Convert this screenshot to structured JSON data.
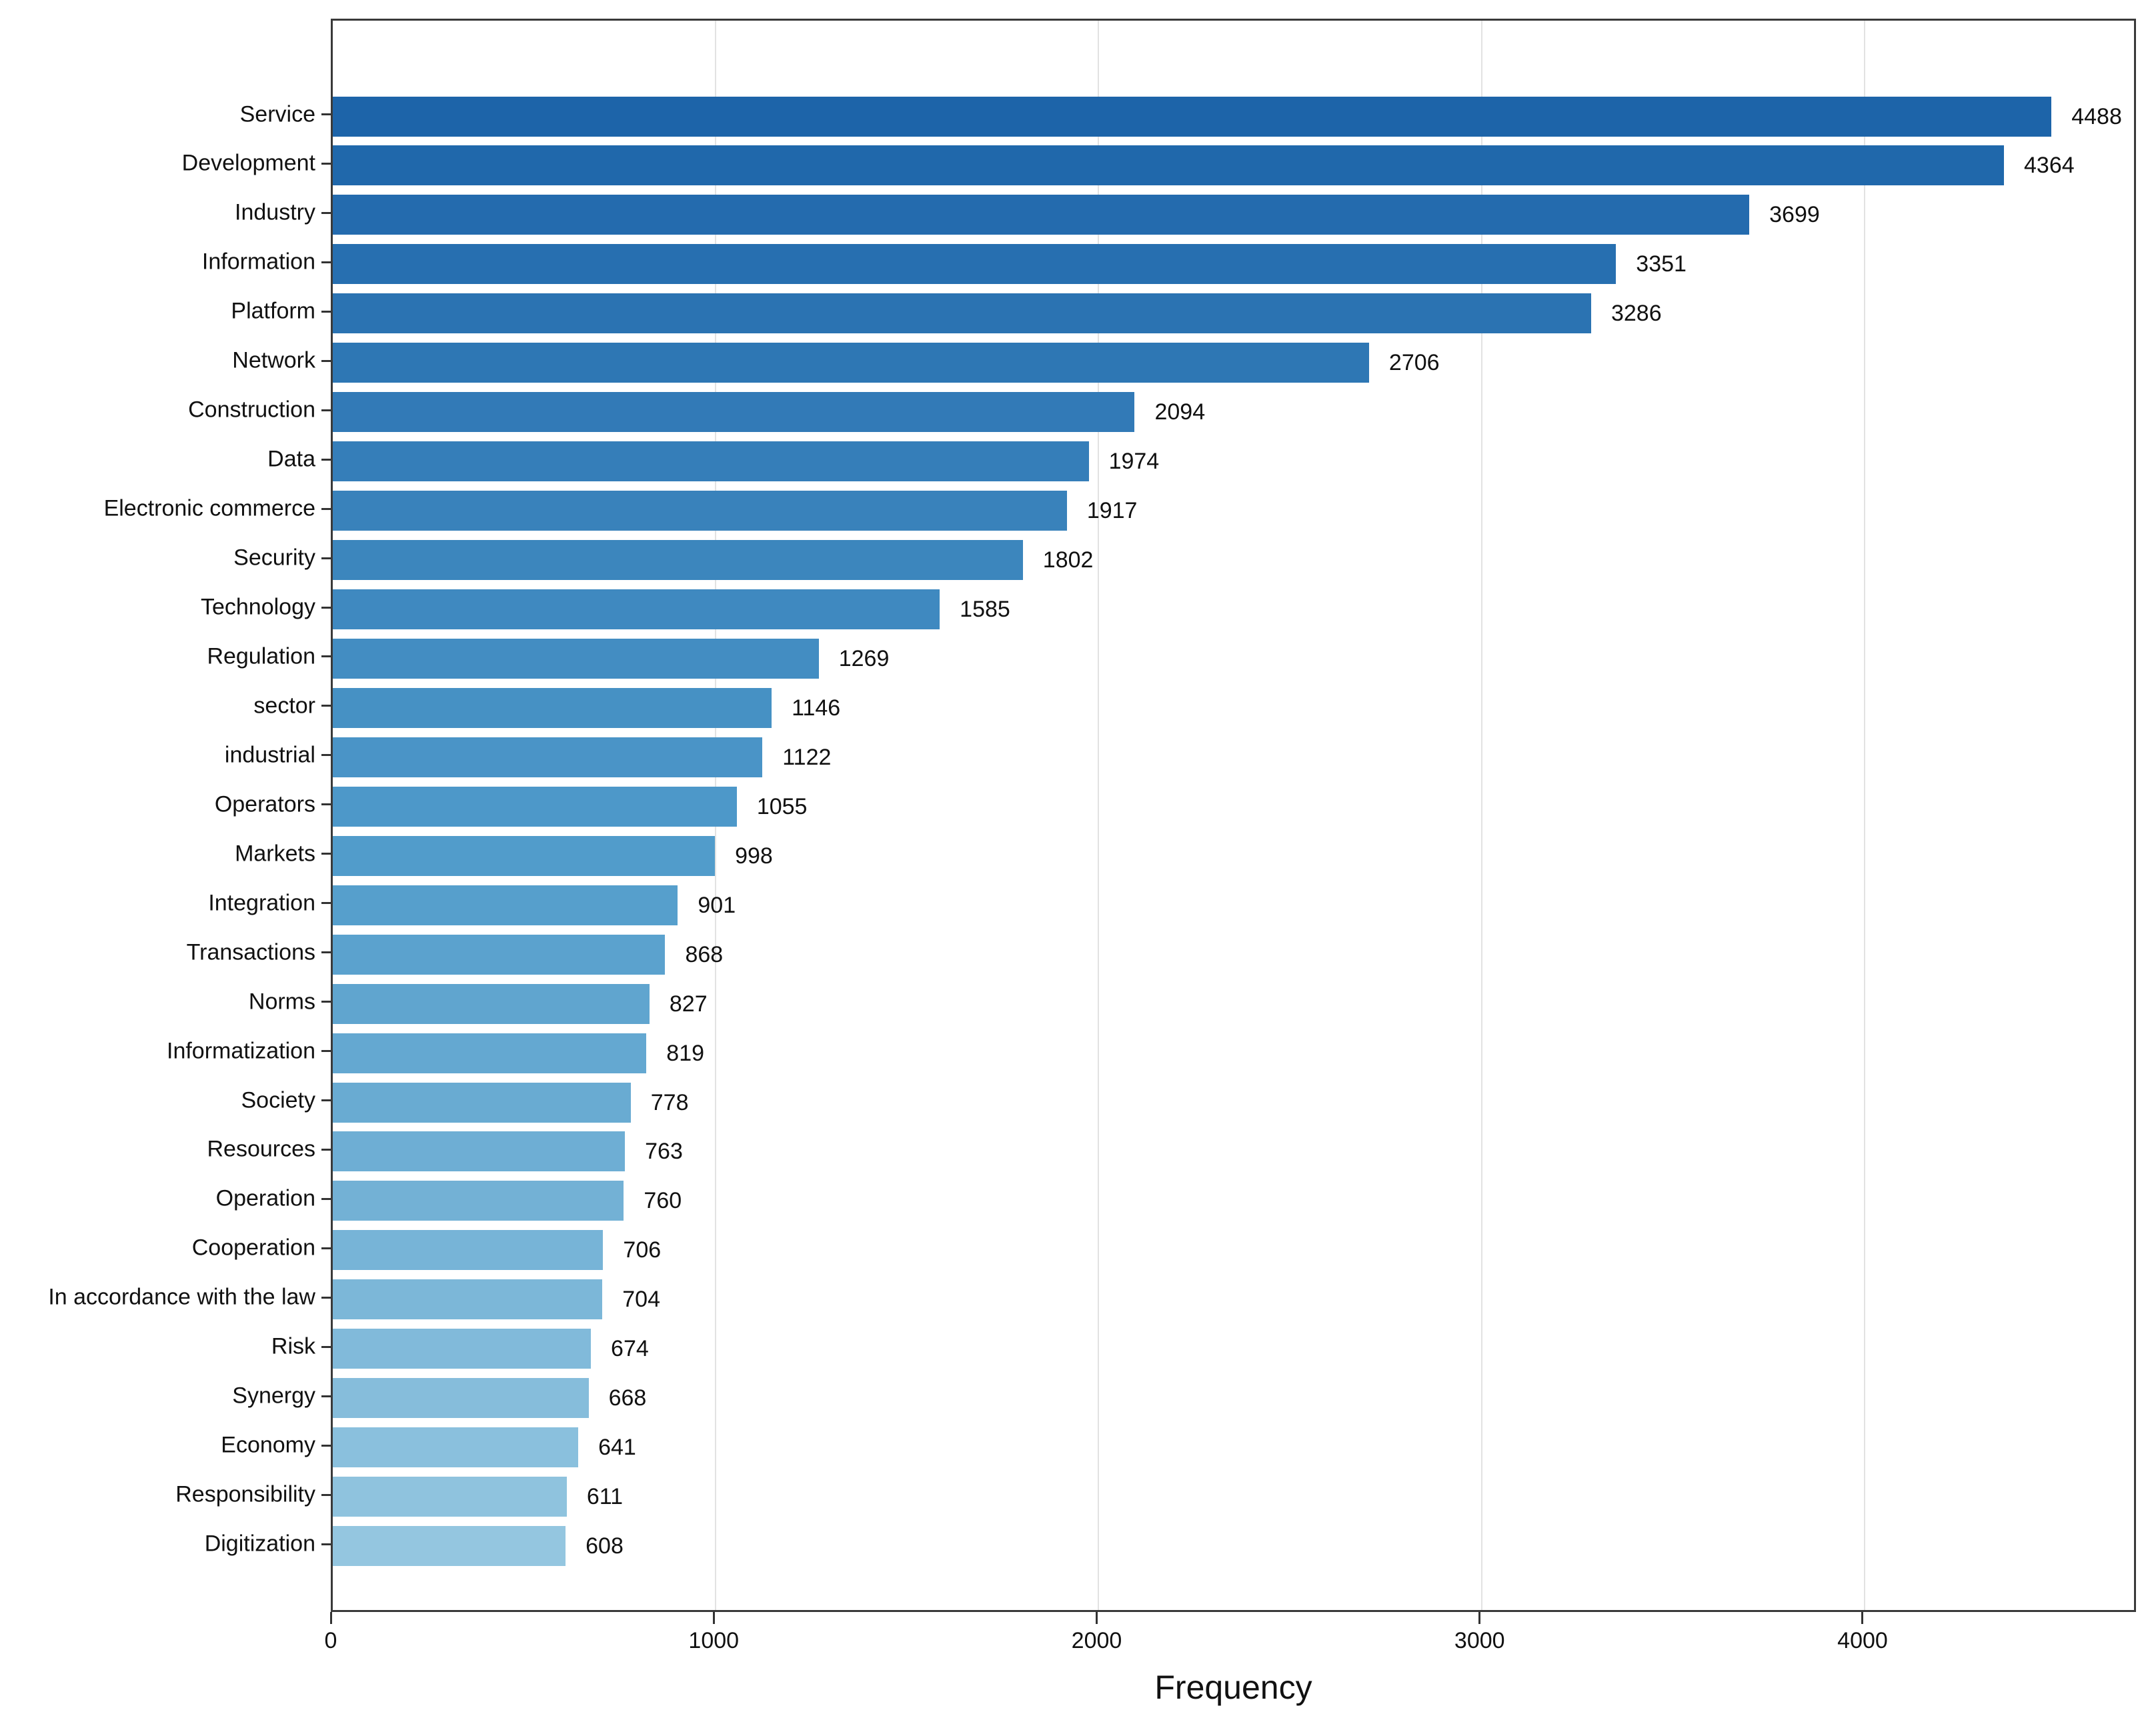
{
  "chart_data": {
    "type": "bar",
    "orientation": "horizontal",
    "title": "",
    "xlabel": "Frequency",
    "ylabel": "",
    "categories": [
      "Service",
      "Development",
      "Industry",
      "Information",
      "Platform",
      "Network",
      "Construction",
      "Data",
      "Electronic commerce",
      "Security",
      "Technology",
      "Regulation",
      "sector",
      "industrial",
      "Operators",
      "Markets",
      "Integration",
      "Transactions",
      "Norms",
      "Informatization",
      "Society",
      "Resources",
      "Operation",
      "Cooperation",
      "In accordance with the law",
      "Risk",
      "Synergy",
      "Economy",
      "Responsibility",
      "Digitization"
    ],
    "values": [
      4488,
      4364,
      3699,
      3351,
      3286,
      2706,
      2094,
      1974,
      1917,
      1802,
      1585,
      1269,
      1146,
      1122,
      1055,
      998,
      901,
      868,
      827,
      819,
      778,
      763,
      760,
      706,
      704,
      674,
      668,
      641,
      611,
      608
    ],
    "x_ticks": [
      0,
      1000,
      2000,
      3000,
      4000
    ],
    "xlim": [
      0,
      4714
    ],
    "grid": "vertical-light",
    "legend": "none",
    "value_labels": "end-of-bar",
    "colors": {
      "bar_dark": "#1d64a9",
      "bar_mid": "#4f9aca",
      "bar_light": "#94c6e0",
      "frame": "#3a3a3a",
      "grid": "#e2e2e2",
      "tick": "#333333",
      "text": "#111111"
    }
  }
}
